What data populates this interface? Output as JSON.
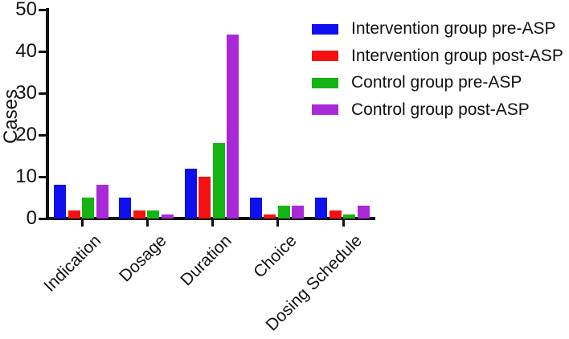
{
  "chart_data": {
    "type": "bar",
    "title": "",
    "xlabel": "",
    "ylabel": "Cases",
    "categories": [
      "Indication",
      "Dosage",
      "Duration",
      "Choice",
      "Dosing Schedule"
    ],
    "series": [
      {
        "name": "Intervention group pre-ASP",
        "color": "#0f0ff0",
        "values": [
          8,
          5,
          12,
          5,
          5
        ]
      },
      {
        "name": "Intervention group post-ASP",
        "color": "#f51111",
        "values": [
          2,
          2,
          10,
          1,
          2
        ]
      },
      {
        "name": "Control group pre-ASP",
        "color": "#14b414",
        "values": [
          5,
          2,
          18,
          3,
          1
        ]
      },
      {
        "name": "Control group post-ASP",
        "color": "#a928d8",
        "values": [
          8,
          1,
          44,
          3,
          3
        ]
      }
    ],
    "ylim": [
      0,
      50
    ],
    "y_ticks": [
      0,
      10,
      20,
      30,
      40,
      50
    ],
    "legend_position": "top-right",
    "grid": false,
    "axis_color": "#0d0d0d"
  }
}
